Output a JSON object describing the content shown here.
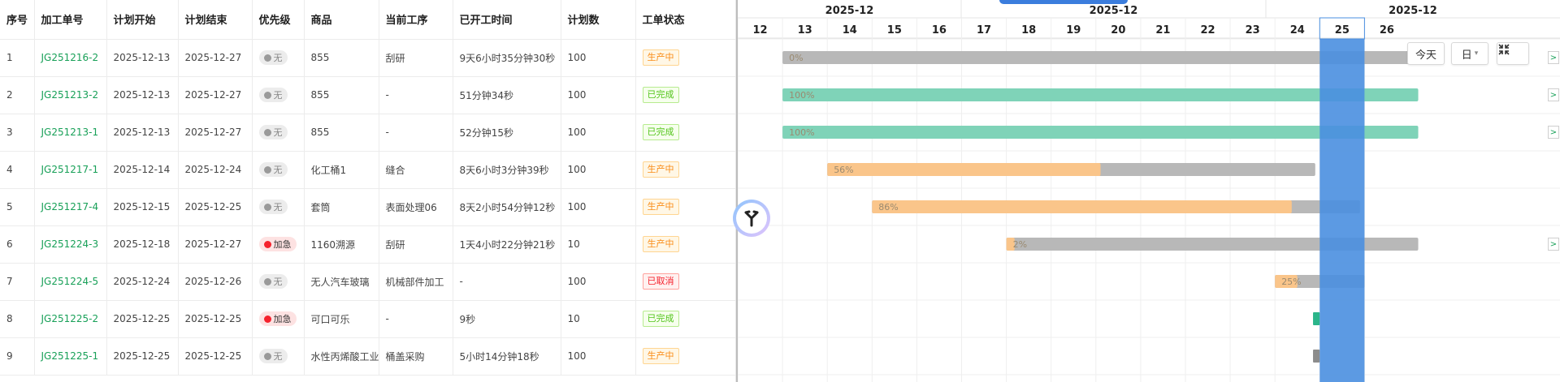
{
  "table": {
    "columns": [
      "序号",
      "加工单号",
      "计划开始",
      "计划结束",
      "优先级",
      "商品",
      "当前工序",
      "已开工时间",
      "计划数",
      "工单状态"
    ],
    "rows": [
      {
        "idx": "1",
        "order": "JG251216-2",
        "start": "2025-12-13",
        "end": "2025-12-27",
        "priority": "无",
        "urgent": false,
        "product": "855",
        "process": "刮研",
        "elapsed": "9天6小时35分钟30秒",
        "qty": "100",
        "status": "生产中",
        "status_kind": "orange"
      },
      {
        "idx": "2",
        "order": "JG251213-2",
        "start": "2025-12-13",
        "end": "2025-12-27",
        "priority": "无",
        "urgent": false,
        "product": "855",
        "process": "-",
        "elapsed": "51分钟34秒",
        "qty": "100",
        "status": "已完成",
        "status_kind": "green"
      },
      {
        "idx": "3",
        "order": "JG251213-1",
        "start": "2025-12-13",
        "end": "2025-12-27",
        "priority": "无",
        "urgent": false,
        "product": "855",
        "process": "-",
        "elapsed": "52分钟15秒",
        "qty": "100",
        "status": "已完成",
        "status_kind": "green"
      },
      {
        "idx": "4",
        "order": "JG251217-1",
        "start": "2025-12-14",
        "end": "2025-12-24",
        "priority": "无",
        "urgent": false,
        "product": "化工桶1",
        "process": "缝合",
        "elapsed": "8天6小时3分钟39秒",
        "qty": "100",
        "status": "生产中",
        "status_kind": "orange"
      },
      {
        "idx": "5",
        "order": "JG251217-4",
        "start": "2025-12-15",
        "end": "2025-12-25",
        "priority": "无",
        "urgent": false,
        "product": "套筒",
        "process": "表面处理06",
        "elapsed": "8天2小时54分钟12秒",
        "qty": "100",
        "status": "生产中",
        "status_kind": "orange"
      },
      {
        "idx": "6",
        "order": "JG251224-3",
        "start": "2025-12-18",
        "end": "2025-12-27",
        "priority": "加急",
        "urgent": true,
        "product": "1160溯源",
        "process": "刮研",
        "elapsed": "1天4小时22分钟21秒",
        "qty": "10",
        "status": "生产中",
        "status_kind": "orange"
      },
      {
        "idx": "7",
        "order": "JG251224-5",
        "start": "2025-12-24",
        "end": "2025-12-26",
        "priority": "无",
        "urgent": false,
        "product": "无人汽车玻璃",
        "process": "机械部件加工",
        "elapsed": "-",
        "qty": "100",
        "status": "已取消",
        "status_kind": "red"
      },
      {
        "idx": "8",
        "order": "JG251225-2",
        "start": "2025-12-25",
        "end": "2025-12-25",
        "priority": "加急",
        "urgent": true,
        "product": "可口可乐",
        "process": "-",
        "elapsed": "9秒",
        "qty": "10",
        "status": "已完成",
        "status_kind": "green"
      },
      {
        "idx": "9",
        "order": "JG251225-1",
        "start": "2025-12-25",
        "end": "2025-12-25",
        "priority": "无",
        "urgent": false,
        "product": "水性丙烯酸工业",
        "process": "桶盖采购",
        "elapsed": "5小时14分钟18秒",
        "qty": "100",
        "status": "生产中",
        "status_kind": "orange"
      }
    ]
  },
  "gantt": {
    "month_labels": [
      "2025-12",
      "2025-12",
      "2025-12"
    ],
    "days": [
      "12",
      "13",
      "14",
      "15",
      "16",
      "17",
      "18",
      "19",
      "20",
      "21",
      "22",
      "23",
      "24",
      "25",
      "26"
    ],
    "today_day": 25,
    "bars": [
      {
        "start": 13,
        "end": 27.2,
        "progress": 0,
        "label": "0%",
        "overflow": true
      },
      {
        "start": 13,
        "end": 27.2,
        "progress": 1,
        "label": "100%",
        "overflow": true
      },
      {
        "start": 13,
        "end": 27.2,
        "progress": 1,
        "label": "100%",
        "overflow": true
      },
      {
        "start": 14,
        "end": 24.9,
        "progress": 0.56,
        "label": "56%",
        "overflow": false
      },
      {
        "start": 15,
        "end": 25.9,
        "progress": 0.86,
        "label": "86%",
        "overflow": false
      },
      {
        "start": 18,
        "end": 27.2,
        "progress": 0.02,
        "label": "2%",
        "overflow": true
      },
      {
        "start": 24,
        "end": 26,
        "progress": 0.25,
        "label": "25%",
        "overflow": false
      },
      {
        "start": 24.85,
        "end": 25.0,
        "progress": 1,
        "label": "",
        "overflow": false,
        "color": "#2bb58a"
      },
      {
        "start": 24.85,
        "end": 25.0,
        "progress": 0,
        "label": "",
        "overflow": false,
        "color": "#8c8c8c"
      }
    ],
    "controls": {
      "today": "今天",
      "view": "日",
      "view_caret": "▾",
      "collapse": "⤡",
      "arrow": ">"
    },
    "colors": {
      "progress_orange": "#fac58a",
      "done_green": "#7fd3b8",
      "track_gray": "#b8b8b8",
      "today_blue": "#4a8fe0"
    }
  }
}
